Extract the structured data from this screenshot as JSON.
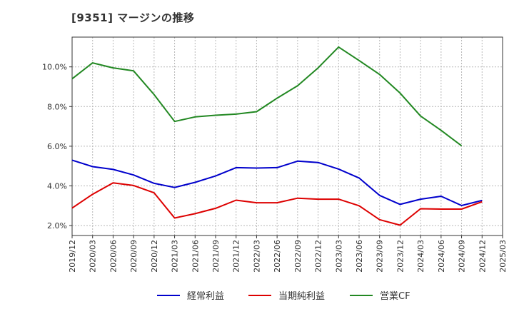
{
  "chart_data": {
    "type": "line",
    "title": "[9351]  マージンの推移",
    "xlabel": "",
    "ylabel": "",
    "x_ticks": [
      "2019/12",
      "2020/03",
      "2020/06",
      "2020/09",
      "2020/12",
      "2021/03",
      "2021/06",
      "2021/09",
      "2021/12",
      "2022/03",
      "2022/06",
      "2022/09",
      "2022/12",
      "2023/03",
      "2023/06",
      "2023/09",
      "2023/12",
      "2024/03",
      "2024/06",
      "2024/09",
      "2024/12",
      "2025/03"
    ],
    "y_ticks": [
      "2.0%",
      "4.0%",
      "6.0%",
      "8.0%",
      "10.0%"
    ],
    "y_tick_values": [
      2,
      4,
      6,
      8,
      10
    ],
    "ylim": [
      1.5,
      11.5
    ],
    "grid": true,
    "legend_position": "bottom",
    "series": [
      {
        "name": "経常利益",
        "color": "#0000cc",
        "values": [
          5.3,
          4.97,
          4.83,
          4.55,
          4.13,
          3.92,
          4.18,
          4.5,
          4.92,
          4.9,
          4.92,
          5.25,
          5.18,
          4.85,
          4.4,
          3.52,
          3.07,
          3.33,
          3.48,
          3.01,
          3.27,
          null
        ]
      },
      {
        "name": "当期純利益",
        "color": "#dd0000",
        "values": [
          2.88,
          3.58,
          4.15,
          4.02,
          3.65,
          2.38,
          2.6,
          2.87,
          3.28,
          3.15,
          3.15,
          3.38,
          3.33,
          3.33,
          3.0,
          2.3,
          2.02,
          2.85,
          2.83,
          2.83,
          3.2,
          null
        ]
      },
      {
        "name": "営業CF",
        "color": "#228822",
        "values": [
          9.4,
          10.2,
          9.95,
          9.8,
          8.6,
          7.25,
          7.48,
          7.56,
          7.62,
          7.74,
          8.42,
          9.05,
          9.95,
          11.0,
          10.32,
          9.62,
          8.68,
          7.52,
          6.8,
          6.02,
          null,
          null
        ]
      }
    ]
  }
}
